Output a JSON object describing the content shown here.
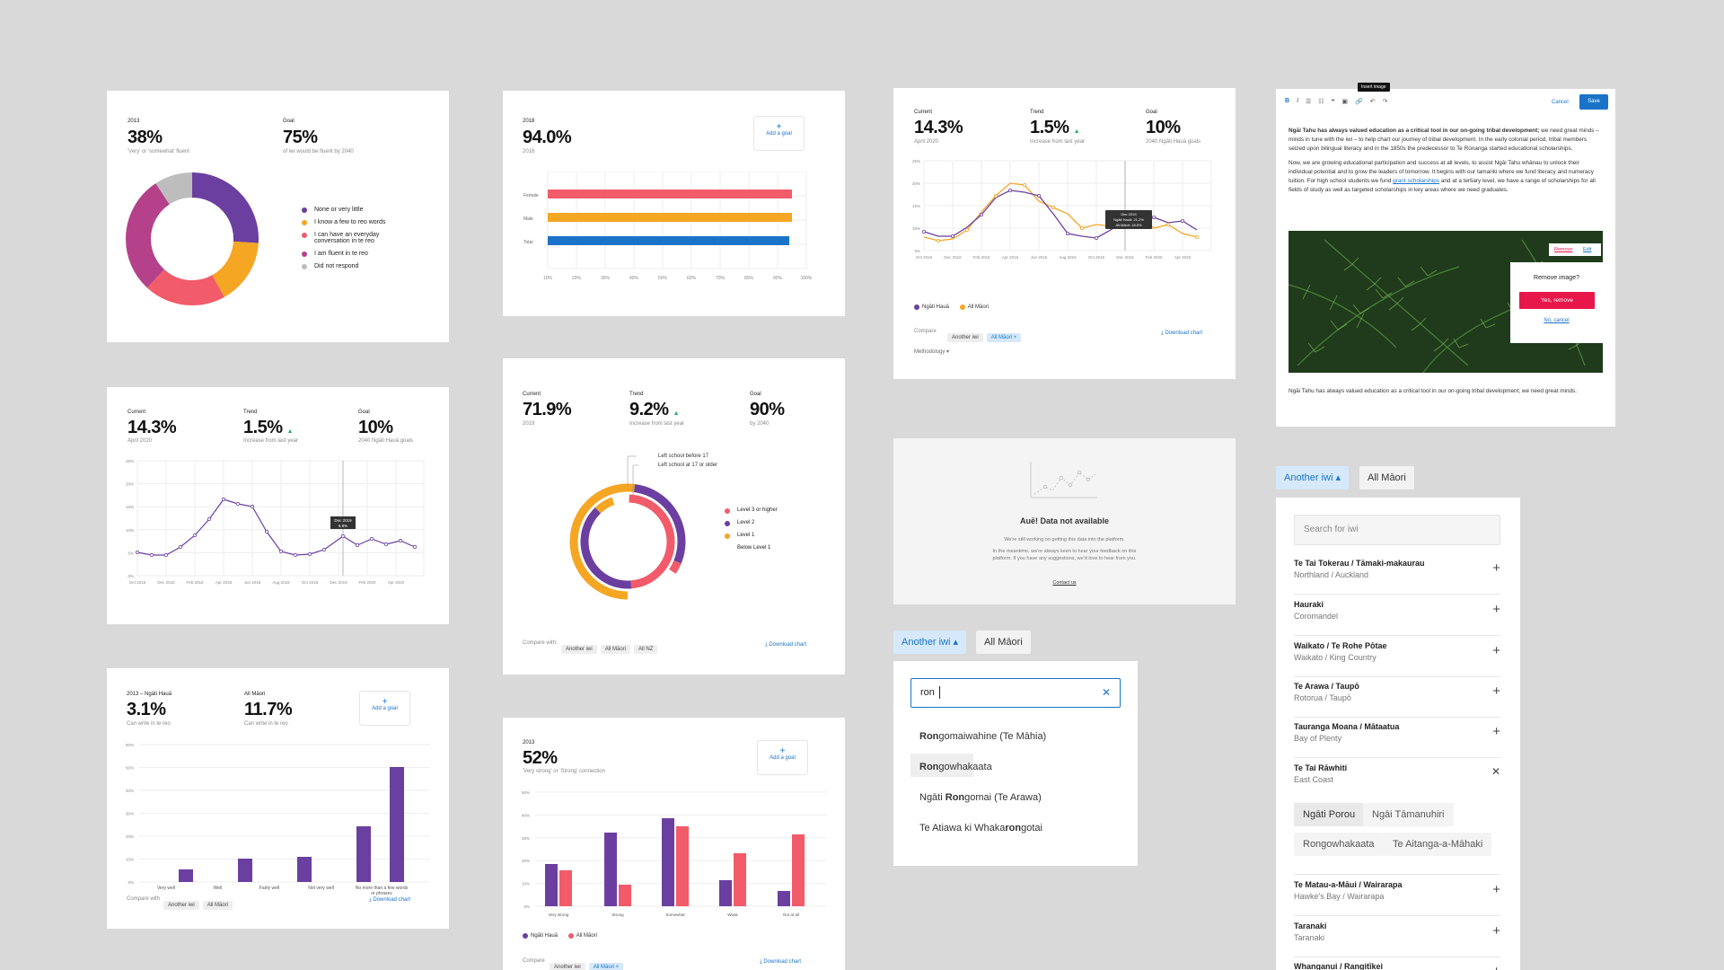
{
  "colors": {
    "purple": "#6b3fa0",
    "orange": "#f5a623",
    "pink": "#f25b6a",
    "magenta": "#b5418a",
    "grey": "#bdbdbd",
    "blue": "#1a73c9",
    "red": "#e8174a",
    "green": "#27ae60"
  },
  "card1": {
    "year": "2013",
    "value": "38%",
    "value_sub": "'Very' or 'somewhat' fluent",
    "goal_label": "Goal",
    "goal_value": "75%",
    "goal_sub": "of iwi would be fluent by 2040",
    "legend": [
      "None or very little",
      "I know a few to reo words",
      "I can have an everyday conversation in te reo",
      "I am fluent in te reo",
      "Did not respond"
    ]
  },
  "card2": {
    "year": "2018",
    "value": "94.0%",
    "value_sub": "2016",
    "add_goal": "Add a goal",
    "bars": [
      "Female",
      "Male",
      "Total"
    ],
    "ticks": [
      "10%",
      "20%",
      "30%",
      "40%",
      "50%",
      "60%",
      "70%",
      "80%",
      "90%",
      "100%"
    ]
  },
  "card3": {
    "current_label": "Current",
    "current": "14.3%",
    "current_sub": "April 2020",
    "trend_label": "Trend",
    "trend": "1.5%",
    "trend_sub": "Increase from last year",
    "goal_label": "Goal",
    "goal": "10%",
    "goal_sub": "2040 Ngāti Hauā goals",
    "yticks": [
      "25%",
      "20%",
      "15%",
      "10%",
      "5%",
      "0%"
    ],
    "xticks": [
      "Oct 2016",
      "Dec 2016",
      "Feb 2016",
      "Apr 2016",
      "Jun 2016",
      "Aug 2016",
      "Oct 2016",
      "Dec 2016",
      "Feb 2020",
      "Apr 2020"
    ],
    "tooltip": [
      "Dec 2019",
      "Ngāti Hauā: 21.2%",
      "All Māori: 18.6%"
    ],
    "legend": [
      "Ngāti Hauā",
      "All Māori"
    ],
    "compare": "Compare",
    "chips": [
      "Another iwi",
      "All Māori ×"
    ],
    "download": "Download chart",
    "methodology": "Methodology ▾"
  },
  "card4": {
    "toolbar": [
      "B",
      "I",
      "☰",
      "☷",
      "❝",
      "▣",
      "🔗",
      "↶",
      "↷"
    ],
    "tooltip": "Insert image",
    "cancel": "Cancel",
    "save": "Save",
    "p1_bold": "Ngāi Tahu has always valued education as a critical tool in our on-going tribal development;",
    "p1_rest": " we need great minds – minds in tune with the iwi – to help chart our journey of tribal development. In the early colonial period, tribal members seized upon bilingual literacy and in the 1850s the predecessor to Te Rūnanga started educational scholarships.",
    "p2a": "Now, we are growing educational participation and success at all levels, to assist Ngāi Tahu whānau to unlock their individual potential and to grow the leaders of tomorrow. It begins with our tamariki where we fund literacy and numeracy tuition. For high school students we fund ",
    "p2link": "grant scholarships",
    "p2b": " and at a tertiary level, we have a range of scholarships for all fields of study as well as targeted scholarships in key areas where we need graduates.",
    "remove": "Remove",
    "edit": "Edit",
    "dialog_q": "Remove image?",
    "dialog_yes": "Yes, remove",
    "dialog_no": "No, cancel",
    "caption": "Ngāi Tahu has always valued education as a critical tool in our on-going tribal development; we need great minds."
  },
  "card5": {
    "current_label": "Current",
    "current": "14.3%",
    "current_sub": "April 2020",
    "trend_label": "Trend",
    "trend": "1.5%",
    "trend_sub": "Increase from last year",
    "goal_label": "Goal",
    "goal": "10%",
    "goal_sub": "2040 Ngāti Hauā goals",
    "yticks": [
      "25%",
      "20%",
      "15%",
      "10%",
      "5%",
      "0%"
    ],
    "xticks": [
      "Oct 2018",
      "Dec 2018",
      "Feb 2018",
      "Apr 2018",
      "Jun 2018",
      "Aug 2018",
      "Oct 2018",
      "Dec 2019",
      "Feb 2020",
      "Apr 2020"
    ],
    "tooltip": [
      "Dec 2019",
      "6.8%"
    ]
  },
  "card6": {
    "current_label": "Current",
    "current": "71.9%",
    "current_sub": "2019",
    "trend_label": "Trend",
    "trend": "9.2%",
    "trend_sub": "Increase from last year",
    "goal_label": "Goal",
    "goal": "90%",
    "goal_sub": "by 2040",
    "ann1": "Left school before 17",
    "ann2": "Left school at 17 or older",
    "legend": [
      "Level 3 or higher",
      "Level 2",
      "Level 1",
      "Below Level 1"
    ],
    "compare": "Compare with:",
    "chips": [
      "Another iwi",
      "All Māori",
      "All NZ"
    ],
    "download": "Download chart"
  },
  "card7": {
    "title": "Auē! Data not available",
    "line1": "We're still working on getting this data into the platform.",
    "line2": "In the meantime, we're always keen to hear your feedback on this platform. If you have any suggestions, we'd love to hear from you.",
    "contact": "Contact us"
  },
  "card8": {
    "year_label": "2013 – Ngāti Hauā",
    "value": "3.1%",
    "value_sub": "Can write in te reo",
    "all_label": "All Māori",
    "all_value": "11.7%",
    "all_sub": "Can write in te reo",
    "add_goal": "Add a goal",
    "yticks": [
      "60%",
      "50%",
      "40%",
      "30%",
      "20%",
      "10%",
      "0%"
    ],
    "cats": [
      "Very well",
      "Well",
      "Fairly well",
      "Not very well",
      "No more than a few words or phrases"
    ],
    "compare": "Compare with",
    "chips": [
      "Another iwi",
      "All Māori"
    ],
    "download": "Download chart"
  },
  "card9": {
    "year": "2013",
    "value": "52%",
    "value_sub": "'Very strong' or 'Strong' connection",
    "add_goal": "Add a goal",
    "yticks": [
      "50%",
      "40%",
      "30%",
      "20%",
      "10%",
      "0%"
    ],
    "cats": [
      "Very strong",
      "Strong",
      "Somewhat",
      "Weak",
      "Not at all"
    ],
    "legend": [
      "Ngāti Hauā",
      "All Māori"
    ],
    "compare": "Compare",
    "chips": [
      "Another iwi",
      "All Māori ×"
    ],
    "download": "Download chart"
  },
  "search": {
    "btn1": "Another iwi ▴",
    "btn2": "All Māori",
    "query": "ron",
    "options": [
      [
        "Ron",
        "gomaiwahine (Te Māhia)"
      ],
      [
        "Ron",
        "gowhakaata"
      ],
      [
        "Ngāti ",
        "Ron",
        "gomai (Te Arawa)"
      ],
      [
        "Te Atiawa ki Whaka",
        "ron",
        "gotai"
      ]
    ]
  },
  "iwi": {
    "btn1": "Another iwi ▴",
    "btn2": "All Māori",
    "placeholder": "Search for iwi",
    "rows": [
      [
        "Te Tai Tokerau / Tāmaki-makaurau",
        "Northland / Auckland"
      ],
      [
        "Hauraki",
        "Coromandel"
      ],
      [
        "Waikato / Te Rohe Pōtae",
        "Waikato / King Country"
      ],
      [
        "Te Arawa / Taupō",
        "Rotorua / Taupō"
      ],
      [
        "Tauranga Moana / Mātaatua",
        "Bay of Plenty"
      ],
      [
        "Te Tai Rāwhiti",
        "East Coast"
      ]
    ],
    "sub": [
      "Ngāti Porou",
      "Ngāi Tāmanuhiri",
      "Rongowhakaata",
      "Te Aitanga-a-Māhaki"
    ],
    "rows2": [
      [
        "Te Matau-a-Māui / Wairarapa",
        "Hawke's Bay / Wairarapa"
      ],
      [
        "Taranaki",
        "Taranaki"
      ],
      [
        "Whanganui / Rangitīkei",
        ""
      ]
    ]
  }
}
